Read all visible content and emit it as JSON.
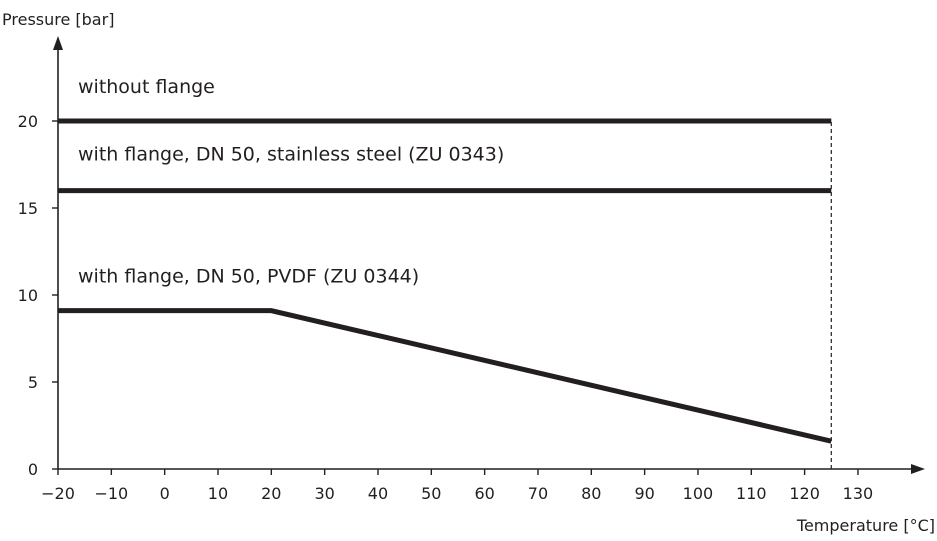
{
  "chart_data": {
    "type": "line",
    "xlabel": "Temperature [°C]",
    "ylabel": "Pressure [bar]",
    "xlim": [
      -20,
      135
    ],
    "ylim": [
      0,
      24
    ],
    "x_ticks": [
      -20,
      -10,
      0,
      10,
      20,
      30,
      40,
      50,
      60,
      70,
      80,
      90,
      100,
      110,
      120,
      130
    ],
    "x_tick_labels": [
      "−20",
      "−10",
      "0",
      "10",
      "20",
      "30",
      "40",
      "50",
      "60",
      "70",
      "80",
      "90",
      "100",
      "110",
      "120",
      "130"
    ],
    "y_ticks": [
      0,
      5,
      10,
      15,
      20
    ],
    "y_tick_labels": [
      "0",
      "5",
      "10",
      "15",
      "20"
    ],
    "grid": false,
    "legend": "none",
    "series": [
      {
        "name": "without flange",
        "x": [
          -20,
          125
        ],
        "y": [
          20,
          20
        ]
      },
      {
        "name": "with flange, DN 50, stainless steel (ZU 0343)",
        "x": [
          -20,
          125
        ],
        "y": [
          16,
          16
        ]
      },
      {
        "name": "with flange, DN 50, PVDF (ZU 0344)",
        "x": [
          -20,
          20,
          125
        ],
        "y": [
          9.1,
          9.1,
          1.6
        ]
      }
    ],
    "annotations": [
      {
        "type": "vertical-dashed-line",
        "x": 125,
        "y_range": [
          0,
          20
        ]
      }
    ]
  }
}
